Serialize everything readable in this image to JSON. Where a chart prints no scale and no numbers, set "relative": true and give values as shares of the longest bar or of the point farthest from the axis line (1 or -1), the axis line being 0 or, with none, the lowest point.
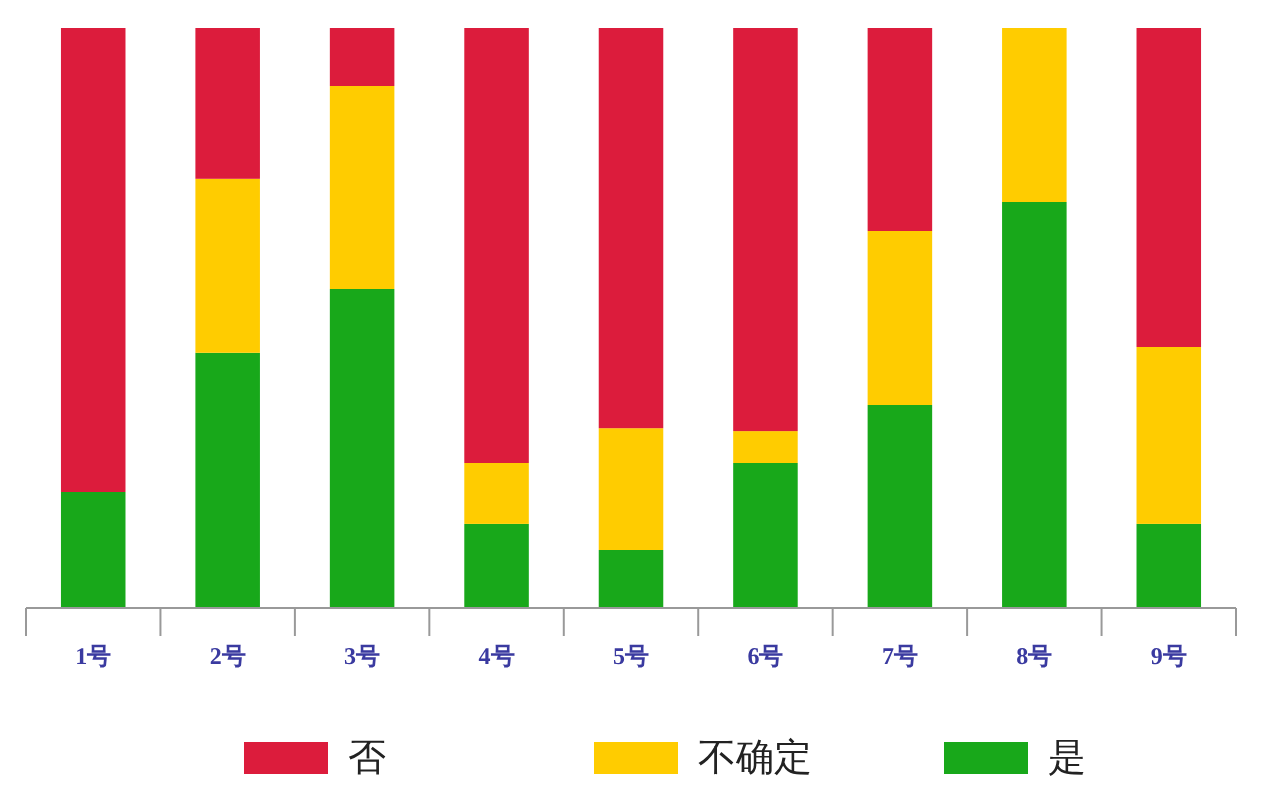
{
  "chart_data": {
    "type": "bar",
    "stacked": true,
    "relative": true,
    "legend": "bottom",
    "categories": [
      "1号",
      "2号",
      "3号",
      "4号",
      "5号",
      "6号",
      "7号",
      "8号",
      "9号"
    ],
    "series": [
      {
        "name": "是",
        "color": "#18a81a",
        "values": [
          0.2,
          0.44,
          0.55,
          0.145,
          0.1,
          0.25,
          0.35,
          0.7,
          0.145
        ]
      },
      {
        "name": "不确定",
        "color": "#ffcc00",
        "values": [
          0,
          0.3,
          0.35,
          0.105,
          0.21,
          0.055,
          0.3,
          0.3,
          0.305
        ]
      },
      {
        "name": "否",
        "color": "#dc1c3c",
        "values": [
          0.8,
          0.26,
          0.1,
          0.75,
          0.69,
          0.695,
          0.35,
          0,
          0.55
        ]
      }
    ]
  }
}
